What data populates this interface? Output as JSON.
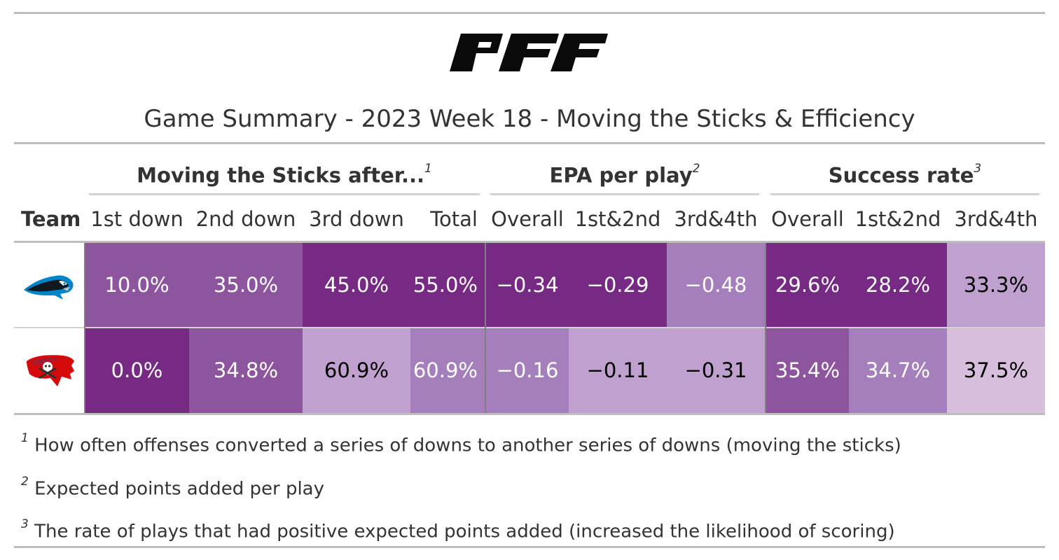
{
  "brand_logo_text": "PFF",
  "title": "Game Summary - 2023 Week 18 - Moving the Sticks & Efficiency",
  "spanners": [
    {
      "label": "Moving the Sticks after...",
      "note": "1"
    },
    {
      "label": "EPA per play",
      "note": "2"
    },
    {
      "label": "Success rate",
      "note": "3"
    }
  ],
  "columns": [
    "Team",
    "1st down",
    "2nd down",
    "3rd down",
    "Total",
    "Overall",
    "1st&2nd",
    "3rd&4th",
    "Overall",
    "1st&2nd",
    "3rd&4th"
  ],
  "rows": [
    {
      "team_logo": "panthers-logo",
      "cells": [
        "10.0%",
        "35.0%",
        "45.0%",
        "55.0%",
        "−0.34",
        "−0.29",
        "−0.48",
        "29.6%",
        "28.2%",
        "33.3%"
      ],
      "fill": [
        "#8d559e",
        "#8d559e",
        "#762a83",
        "#762a83",
        "#762a83",
        "#762a83",
        "#a57fbb",
        "#762a83",
        "#762a83",
        "#bfa0ce"
      ],
      "text_color": [
        "#ffffff",
        "#ffffff",
        "#ffffff",
        "#ffffff",
        "#ffffff",
        "#ffffff",
        "#ffffff",
        "#ffffff",
        "#ffffff",
        "#000000"
      ]
    },
    {
      "team_logo": "buccaneers-logo",
      "cells": [
        "0.0%",
        "34.8%",
        "60.9%",
        "60.9%",
        "−0.16",
        "−0.11",
        "−0.31",
        "35.4%",
        "34.7%",
        "37.5%"
      ],
      "fill": [
        "#762a83",
        "#8d559e",
        "#bfa0ce",
        "#a57fbb",
        "#a57fbb",
        "#bfa0ce",
        "#bfa0ce",
        "#8d559e",
        "#a57fbb",
        "#d8bedd"
      ],
      "text_color": [
        "#ffffff",
        "#ffffff",
        "#000000",
        "#ffffff",
        "#ffffff",
        "#000000",
        "#000000",
        "#ffffff",
        "#ffffff",
        "#000000"
      ]
    }
  ],
  "footnotes": [
    {
      "mark": "1",
      "text": "How often offenses converted a series of downs to another series of downs (moving the sticks)"
    },
    {
      "mark": "2",
      "text": "Expected points added per play"
    },
    {
      "mark": "3",
      "text": "The rate of plays that had positive expected points added (increased the likelihood of scoring)"
    }
  ],
  "chart_data": {
    "type": "table",
    "title": "Game Summary - 2023 Week 18 - Moving the Sticks & Efficiency",
    "column_groups": [
      {
        "name": "Moving the Sticks after...",
        "columns": [
          "1st down",
          "2nd down",
          "3rd down",
          "Total"
        ]
      },
      {
        "name": "EPA per play",
        "columns": [
          "Overall",
          "1st&2nd",
          "3rd&4th"
        ]
      },
      {
        "name": "Success rate",
        "columns": [
          "Overall",
          "1st&2nd",
          "3rd&4th"
        ]
      }
    ],
    "rows": [
      {
        "team": "Carolina Panthers (logo)",
        "values": [
          10.0,
          35.0,
          45.0,
          55.0,
          -0.34,
          -0.29,
          -0.48,
          29.6,
          28.2,
          33.3
        ]
      },
      {
        "team": "Tampa Bay Buccaneers (logo)",
        "values": [
          0.0,
          34.8,
          60.9,
          60.9,
          -0.16,
          -0.11,
          -0.31,
          35.4,
          34.7,
          37.5
        ]
      }
    ],
    "color_scale": "purple"
  }
}
